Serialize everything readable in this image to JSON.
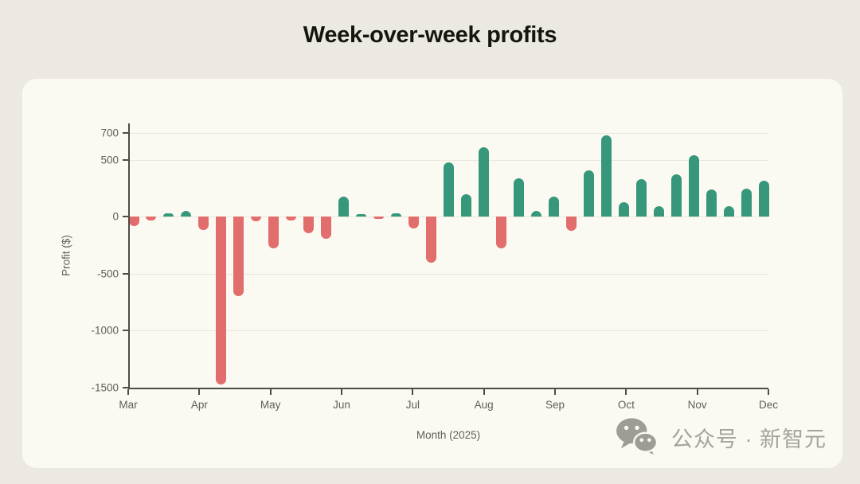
{
  "page": {
    "title": "Week-over-week profits",
    "watermark": {
      "icon": "wechat-icon",
      "text": "公众号 · 新智元"
    }
  },
  "chart_data": {
    "type": "bar",
    "title": "Week-over-week profits",
    "xlabel": "Month (2025)",
    "ylabel": "Profit ($)",
    "granularity": "weekly",
    "x_month_labels": [
      "Mar",
      "Apr",
      "May",
      "Jun",
      "Jul",
      "Aug",
      "Sep",
      "Oct",
      "Nov",
      "Dec"
    ],
    "values": [
      -80,
      -35,
      30,
      50,
      -115,
      -1470,
      -695,
      -40,
      -275,
      -35,
      -145,
      -190,
      180,
      20,
      -20,
      30,
      -100,
      -400,
      475,
      200,
      610,
      -280,
      340,
      50,
      180,
      -125,
      410,
      715,
      130,
      330,
      95,
      370,
      540,
      240,
      90,
      250,
      315
    ],
    "yticks": [
      700,
      500,
      0,
      -500,
      -1000,
      -1500
    ],
    "ylim": [
      -1500,
      820
    ],
    "grid": "horizontal",
    "legend": "none",
    "colors": {
      "positive": "#36977b",
      "negative": "#e16d6d"
    }
  },
  "theme": {
    "page_bg": "#ebe9e1",
    "card_bg": "#fbfaf2",
    "axis_line": "#4d4c45",
    "gridline": "#e8e6dc",
    "tick_text": "#5f5f58",
    "title_text": "#15150f",
    "watermark_text": "#a5a49c"
  }
}
